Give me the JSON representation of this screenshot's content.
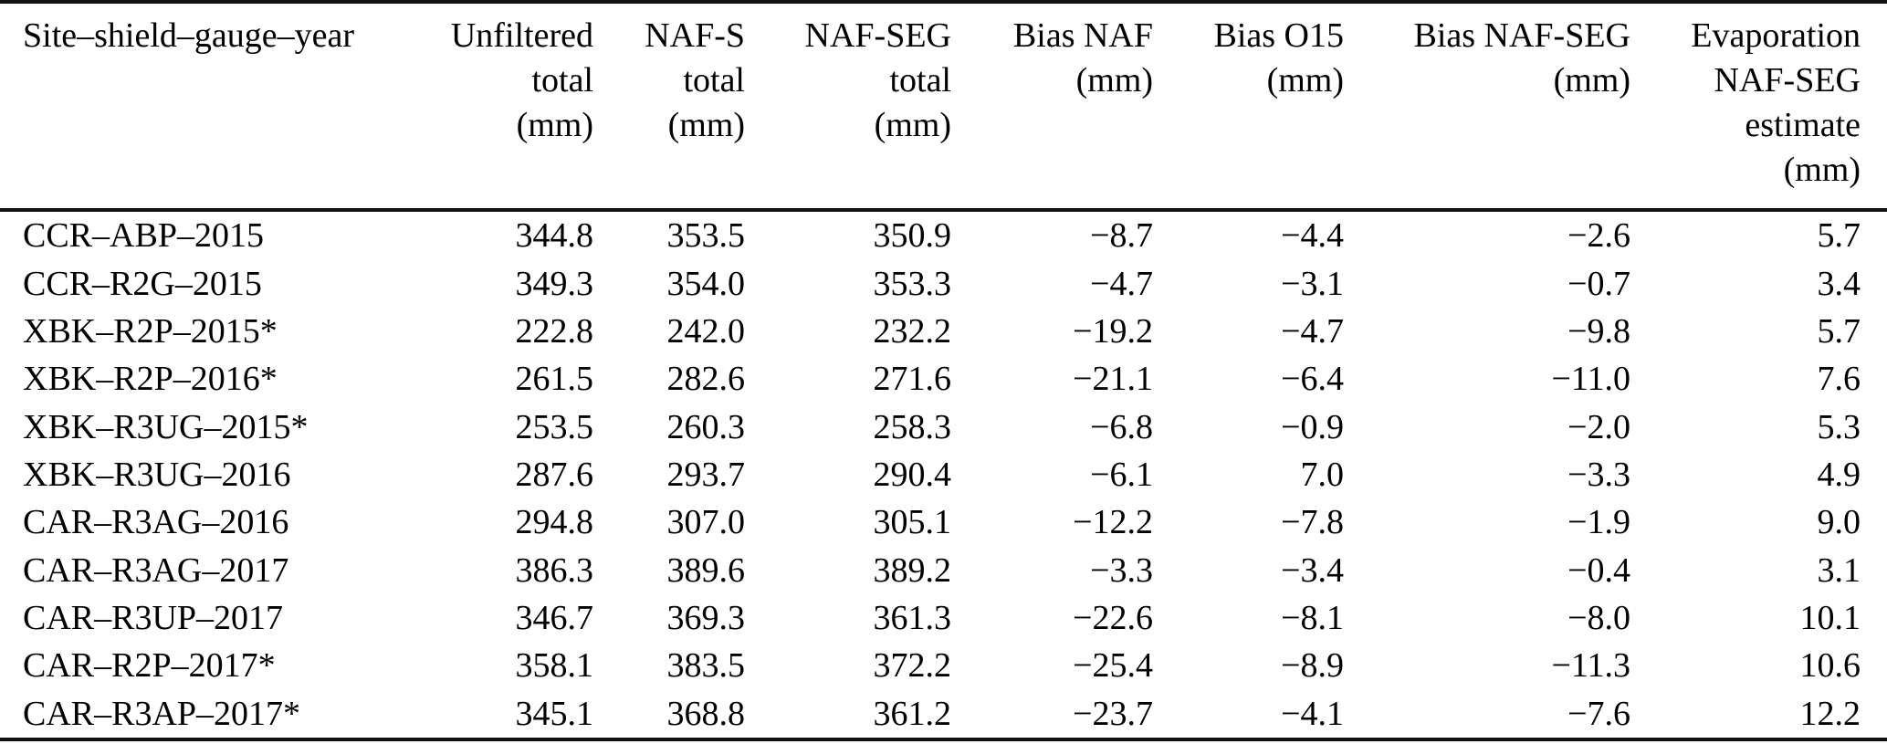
{
  "colors": {
    "background": "#ffffff",
    "text": "#000000",
    "rule": "#111111"
  },
  "table": {
    "header": {
      "columns": [
        {
          "id": "site-shield-gauge-year",
          "lines": [
            "Site–shield–gauge–year"
          ]
        },
        {
          "id": "unfiltered-total",
          "lines": [
            "Unfiltered",
            "total",
            "(mm)"
          ]
        },
        {
          "id": "naf-s-total",
          "lines": [
            "NAF-S",
            "total",
            "(mm)"
          ]
        },
        {
          "id": "naf-seg-total",
          "lines": [
            "NAF-SEG",
            "total",
            "(mm)"
          ]
        },
        {
          "id": "bias-naf",
          "lines": [
            "Bias NAF",
            "(mm)"
          ]
        },
        {
          "id": "bias-o15",
          "lines": [
            "Bias O15",
            "(mm)"
          ]
        },
        {
          "id": "bias-naf-seg",
          "lines": [
            "Bias NAF-SEG",
            "(mm)"
          ]
        },
        {
          "id": "evaporation-naf-seg",
          "lines": [
            "Evaporation",
            "NAF-SEG",
            "estimate",
            "(mm)"
          ]
        }
      ]
    },
    "rows": [
      [
        "CCR–ABP–2015",
        "344.8",
        "353.5",
        "350.9",
        "−8.7",
        "−4.4",
        "−2.6",
        "5.7"
      ],
      [
        "CCR–R2G–2015",
        "349.3",
        "354.0",
        "353.3",
        "−4.7",
        "−3.1",
        "−0.7",
        "3.4"
      ],
      [
        "XBK–R2P–2015*",
        "222.8",
        "242.0",
        "232.2",
        "−19.2",
        "−4.7",
        "−9.8",
        "5.7"
      ],
      [
        "XBK–R2P–2016*",
        "261.5",
        "282.6",
        "271.6",
        "−21.1",
        "−6.4",
        "−11.0",
        "7.6"
      ],
      [
        "XBK–R3UG–2015*",
        "253.5",
        "260.3",
        "258.3",
        "−6.8",
        "−0.9",
        "−2.0",
        "5.3"
      ],
      [
        "XBK–R3UG–2016",
        "287.6",
        "293.7",
        "290.4",
        "−6.1",
        "7.0",
        "−3.3",
        "4.9"
      ],
      [
        "CAR–R3AG–2016",
        "294.8",
        "307.0",
        "305.1",
        "−12.2",
        "−7.8",
        "−1.9",
        "9.0"
      ],
      [
        "CAR–R3AG–2017",
        "386.3",
        "389.6",
        "389.2",
        "−3.3",
        "−3.4",
        "−0.4",
        "3.1"
      ],
      [
        "CAR–R3UP–2017",
        "346.7",
        "369.3",
        "361.3",
        "−22.6",
        "−8.1",
        "−8.0",
        "10.1"
      ],
      [
        "CAR–R2P–2017*",
        "358.1",
        "383.5",
        "372.2",
        "−25.4",
        "−8.9",
        "−11.3",
        "10.6"
      ],
      [
        "CAR–R3AP–2017*",
        "345.1",
        "368.8",
        "361.2",
        "−23.7",
        "−4.1",
        "−7.6",
        "12.2"
      ]
    ]
  }
}
